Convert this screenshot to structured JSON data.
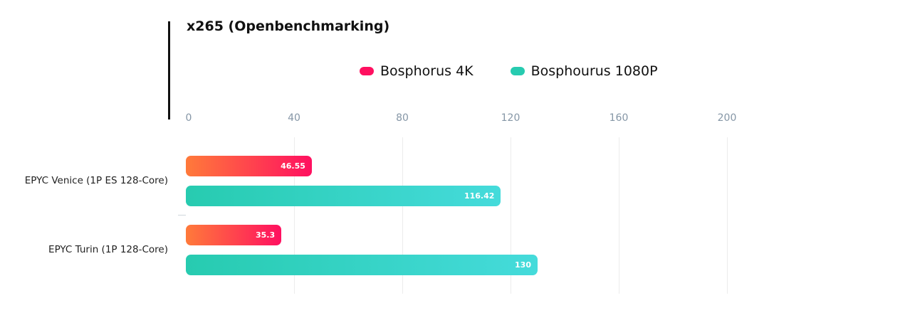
{
  "colors": {
    "series_4k_start": "#ff7a3a",
    "series_4k_end": "#ff1060",
    "series_1080p_start": "#27cbb0",
    "series_1080p_end": "#45dbdb",
    "tick_color": "#8596a6"
  },
  "chart_data": {
    "type": "bar",
    "orientation": "horizontal",
    "title": "x265 (Openbenchmarking)",
    "categories": [
      "EPYC Venice (1P ES 128-Core)",
      "EPYC Turin (1P 128-Core)"
    ],
    "series": [
      {
        "name": "Bosphorus 4K",
        "values": [
          46.55,
          35.3
        ],
        "labels": [
          "46.55",
          "35.3"
        ]
      },
      {
        "name": "Bosphourus 1080P",
        "values": [
          116.42,
          130
        ],
        "labels": [
          "116.42",
          "130"
        ]
      }
    ],
    "xlim": [
      0,
      200
    ],
    "xticks": [
      "0",
      "40",
      "80",
      "120",
      "160",
      "200"
    ],
    "grid": true,
    "legend": "top-center"
  }
}
